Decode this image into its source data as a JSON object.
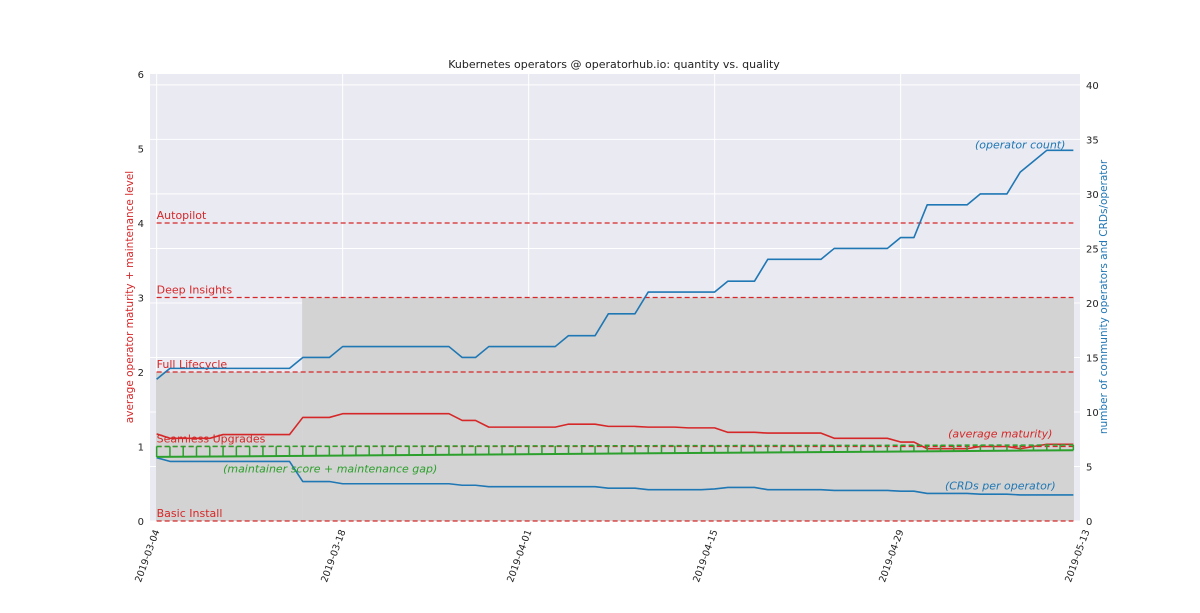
{
  "chart_data": {
    "type": "line",
    "title": "Kubernetes operators @ operatorhub.io: quantity vs. quality",
    "ylabel_left": "average operator maturity + maintenance level",
    "ylabel_right": "number of community operators and CRDs/operator",
    "ylim_left": [
      0,
      6
    ],
    "ylim_right": [
      0,
      41
    ],
    "yticks_left": [
      "0",
      "1",
      "2",
      "3",
      "4",
      "5",
      "6"
    ],
    "yticks_right": [
      "0",
      "5",
      "10",
      "15",
      "20",
      "25",
      "30",
      "35",
      "40"
    ],
    "xlim_days": [
      -0.5,
      69.5
    ],
    "x_ticks": [
      {
        "label": "2019-03-04",
        "day": 0
      },
      {
        "label": "2019-03-18",
        "day": 14
      },
      {
        "label": "2019-04-01",
        "day": 28
      },
      {
        "label": "2019-04-15",
        "day": 42
      },
      {
        "label": "2019-04-29",
        "day": 56
      },
      {
        "label": "2019-05-13",
        "day": 70
      }
    ],
    "grid": true,
    "colors": {
      "background": "#eaeaf2",
      "grid": "#ffffff",
      "maturity": "#d62728",
      "count": "#1f77b4",
      "maintainer": "#2ca02c",
      "band": "#d3d3d3"
    },
    "maturity_levels": [
      {
        "label": "Basic Install",
        "value": 0
      },
      {
        "label": "Seamless Upgrades",
        "value": 1
      },
      {
        "label": "Full Lifecycle",
        "value": 2
      },
      {
        "label": "Deep Insights",
        "value": 3
      },
      {
        "label": "Autopilot",
        "value": 4
      }
    ],
    "band": [
      {
        "x0": -0.5,
        "x1": 10.5,
        "top": 2
      },
      {
        "x0": 10.5,
        "x1": 69.5,
        "top": 3
      }
    ],
    "annotations": [
      {
        "text": "(operator count)",
        "x": 65,
        "y": 5.0,
        "series": "count"
      },
      {
        "text": "(average maturity)",
        "x": 63.5,
        "y": 1.12,
        "series": "maturity"
      },
      {
        "text": "(CRDs per operator)",
        "x": 63.5,
        "y": 0.42,
        "series": "crds"
      },
      {
        "text": "(maintainer score + maintenance gap)",
        "x": 5,
        "y": 0.65,
        "series": "maintainer"
      }
    ],
    "series": [
      {
        "name": "operator count",
        "axis": "right",
        "color": "#1f77b4",
        "points": [
          [
            0,
            13
          ],
          [
            1,
            14
          ],
          [
            2,
            14
          ],
          [
            3,
            14
          ],
          [
            4,
            14
          ],
          [
            5,
            14
          ],
          [
            6,
            14
          ],
          [
            7,
            14
          ],
          [
            8,
            14
          ],
          [
            9,
            14
          ],
          [
            10,
            14
          ],
          [
            11,
            15
          ],
          [
            12,
            15
          ],
          [
            13,
            15
          ],
          [
            14,
            16
          ],
          [
            15,
            16
          ],
          [
            16,
            16
          ],
          [
            17,
            16
          ],
          [
            18,
            16
          ],
          [
            19,
            16
          ],
          [
            20,
            16
          ],
          [
            21,
            16
          ],
          [
            22,
            16
          ],
          [
            23,
            15
          ],
          [
            24,
            15
          ],
          [
            25,
            16
          ],
          [
            26,
            16
          ],
          [
            27,
            16
          ],
          [
            28,
            16
          ],
          [
            29,
            16
          ],
          [
            30,
            16
          ],
          [
            31,
            17
          ],
          [
            32,
            17
          ],
          [
            33,
            17
          ],
          [
            34,
            19
          ],
          [
            35,
            19
          ],
          [
            36,
            19
          ],
          [
            37,
            21
          ],
          [
            38,
            21
          ],
          [
            39,
            21
          ],
          [
            40,
            21
          ],
          [
            41,
            21
          ],
          [
            42,
            21
          ],
          [
            43,
            22
          ],
          [
            44,
            22
          ],
          [
            45,
            22
          ],
          [
            46,
            24
          ],
          [
            47,
            24
          ],
          [
            48,
            24
          ],
          [
            49,
            24
          ],
          [
            50,
            24
          ],
          [
            51,
            25
          ],
          [
            52,
            25
          ],
          [
            53,
            25
          ],
          [
            54,
            25
          ],
          [
            55,
            25
          ],
          [
            56,
            26
          ],
          [
            57,
            26
          ],
          [
            58,
            29
          ],
          [
            59,
            29
          ],
          [
            60,
            29
          ],
          [
            61,
            29
          ],
          [
            62,
            30
          ],
          [
            63,
            30
          ],
          [
            64,
            30
          ],
          [
            65,
            32
          ],
          [
            66,
            33
          ],
          [
            67,
            34
          ],
          [
            68,
            34
          ],
          [
            69,
            34
          ]
        ]
      },
      {
        "name": "average maturity",
        "axis": "left",
        "color": "#d62728",
        "points": [
          [
            0,
            1.17
          ],
          [
            1,
            1.11
          ],
          [
            2,
            1.11
          ],
          [
            3,
            1.11
          ],
          [
            4,
            1.11
          ],
          [
            5,
            1.16
          ],
          [
            6,
            1.16
          ],
          [
            7,
            1.16
          ],
          [
            8,
            1.16
          ],
          [
            9,
            1.16
          ],
          [
            10,
            1.16
          ],
          [
            11,
            1.39
          ],
          [
            12,
            1.39
          ],
          [
            13,
            1.39
          ],
          [
            14,
            1.44
          ],
          [
            15,
            1.44
          ],
          [
            16,
            1.44
          ],
          [
            17,
            1.44
          ],
          [
            18,
            1.44
          ],
          [
            19,
            1.44
          ],
          [
            20,
            1.44
          ],
          [
            21,
            1.44
          ],
          [
            22,
            1.44
          ],
          [
            23,
            1.35
          ],
          [
            24,
            1.35
          ],
          [
            25,
            1.26
          ],
          [
            26,
            1.26
          ],
          [
            27,
            1.26
          ],
          [
            28,
            1.26
          ],
          [
            29,
            1.26
          ],
          [
            30,
            1.26
          ],
          [
            31,
            1.3
          ],
          [
            32,
            1.3
          ],
          [
            33,
            1.3
          ],
          [
            34,
            1.27
          ],
          [
            35,
            1.27
          ],
          [
            36,
            1.27
          ],
          [
            37,
            1.26
          ],
          [
            38,
            1.26
          ],
          [
            39,
            1.26
          ],
          [
            40,
            1.25
          ],
          [
            41,
            1.25
          ],
          [
            42,
            1.25
          ],
          [
            43,
            1.19
          ],
          [
            44,
            1.19
          ],
          [
            45,
            1.19
          ],
          [
            46,
            1.18
          ],
          [
            47,
            1.18
          ],
          [
            48,
            1.18
          ],
          [
            49,
            1.18
          ],
          [
            50,
            1.18
          ],
          [
            51,
            1.11
          ],
          [
            52,
            1.11
          ],
          [
            53,
            1.11
          ],
          [
            54,
            1.11
          ],
          [
            55,
            1.11
          ],
          [
            56,
            1.06
          ],
          [
            57,
            1.06
          ],
          [
            58,
            0.97
          ],
          [
            59,
            0.97
          ],
          [
            60,
            0.97
          ],
          [
            61,
            0.97
          ],
          [
            62,
            1.0
          ],
          [
            63,
            1.0
          ],
          [
            64,
            1.0
          ],
          [
            65,
            0.97
          ],
          [
            66,
            1.0
          ],
          [
            67,
            1.03
          ],
          [
            68,
            1.03
          ],
          [
            69,
            1.03
          ]
        ]
      },
      {
        "name": "CRDs per operator",
        "axis": "left",
        "color": "#1f77b4",
        "points": [
          [
            0,
            0.85
          ],
          [
            1,
            0.8
          ],
          [
            2,
            0.8
          ],
          [
            3,
            0.8
          ],
          [
            4,
            0.8
          ],
          [
            5,
            0.8
          ],
          [
            6,
            0.8
          ],
          [
            7,
            0.8
          ],
          [
            8,
            0.8
          ],
          [
            9,
            0.8
          ],
          [
            10,
            0.8
          ],
          [
            11,
            0.53
          ],
          [
            12,
            0.53
          ],
          [
            13,
            0.53
          ],
          [
            14,
            0.5
          ],
          [
            15,
            0.5
          ],
          [
            16,
            0.5
          ],
          [
            17,
            0.5
          ],
          [
            18,
            0.5
          ],
          [
            19,
            0.5
          ],
          [
            20,
            0.5
          ],
          [
            21,
            0.5
          ],
          [
            22,
            0.5
          ],
          [
            23,
            0.48
          ],
          [
            24,
            0.48
          ],
          [
            25,
            0.46
          ],
          [
            26,
            0.46
          ],
          [
            27,
            0.46
          ],
          [
            28,
            0.46
          ],
          [
            29,
            0.46
          ],
          [
            30,
            0.46
          ],
          [
            31,
            0.46
          ],
          [
            32,
            0.46
          ],
          [
            33,
            0.46
          ],
          [
            34,
            0.44
          ],
          [
            35,
            0.44
          ],
          [
            36,
            0.44
          ],
          [
            37,
            0.42
          ],
          [
            38,
            0.42
          ],
          [
            39,
            0.42
          ],
          [
            40,
            0.42
          ],
          [
            41,
            0.42
          ],
          [
            42,
            0.43
          ],
          [
            43,
            0.45
          ],
          [
            44,
            0.45
          ],
          [
            45,
            0.45
          ],
          [
            46,
            0.42
          ],
          [
            47,
            0.42
          ],
          [
            48,
            0.42
          ],
          [
            49,
            0.42
          ],
          [
            50,
            0.42
          ],
          [
            51,
            0.41
          ],
          [
            52,
            0.41
          ],
          [
            53,
            0.41
          ],
          [
            54,
            0.41
          ],
          [
            55,
            0.41
          ],
          [
            56,
            0.4
          ],
          [
            57,
            0.4
          ],
          [
            58,
            0.37
          ],
          [
            59,
            0.37
          ],
          [
            60,
            0.37
          ],
          [
            61,
            0.37
          ],
          [
            62,
            0.36
          ],
          [
            63,
            0.36
          ],
          [
            64,
            0.36
          ],
          [
            65,
            0.35
          ],
          [
            66,
            0.35
          ],
          [
            67,
            0.35
          ],
          [
            68,
            0.35
          ],
          [
            69,
            0.35
          ]
        ]
      },
      {
        "name": "maintainer score + maintenance gap",
        "axis": "left",
        "color": "#2ca02c",
        "style": "bracket",
        "lower": 0.86,
        "upper": 1.0,
        "points": [
          [
            0,
            0.86
          ],
          [
            69,
            0.95
          ]
        ]
      }
    ]
  }
}
